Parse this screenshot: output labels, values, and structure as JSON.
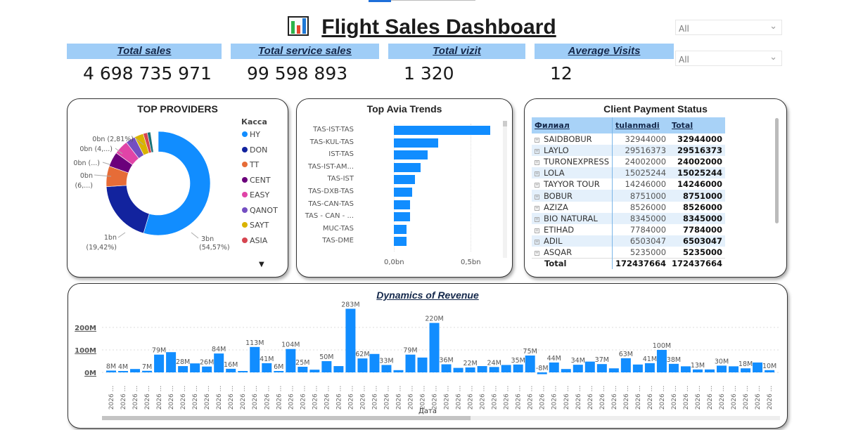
{
  "header": {
    "title": "Flight Sales Dashboard",
    "icon": "bar-chart-icon"
  },
  "kpis": [
    {
      "label": "Total sales",
      "value": "4 698 735 971"
    },
    {
      "label": "Total service sales",
      "value": "99 598 893"
    },
    {
      "label": "Total vizit",
      "value": "1 320"
    },
    {
      "label": "Average Visits",
      "value": "12"
    }
  ],
  "filters": [
    {
      "value": "All"
    },
    {
      "value": "All"
    }
  ],
  "colors": {
    "accent": "#118dff",
    "kpi_header": "#9fcdf7",
    "table_header": "#a8d2f7"
  },
  "chart_data": [
    {
      "type": "pie",
      "title": "TOP PROVIDERS",
      "legend_title": "Касса",
      "legend_position": "right",
      "donut": true,
      "slices": [
        {
          "name": "HY",
          "percent": 54.57,
          "label": "3bn",
          "pct_label": "(54,57%)",
          "color": "#118dff"
        },
        {
          "name": "DON",
          "percent": 19.42,
          "label": "1bn",
          "pct_label": "(19,42%)",
          "color": "#12239e"
        },
        {
          "name": "TT",
          "percent": 6.4,
          "label": "0bn",
          "pct_label": "(6,...)",
          "color": "#e66c37"
        },
        {
          "name": "CENT",
          "percent": 4.6,
          "label": "0bn (...)",
          "color": "#6b007b"
        },
        {
          "name": "EASY",
          "percent": 4.5,
          "label": "0bn (4,...)",
          "color": "#e044a7"
        },
        {
          "name": "QANOT",
          "percent": 3.0,
          "label": "",
          "color": "#744ec2"
        },
        {
          "name": "SAYT",
          "percent": 2.81,
          "label": "0bn (2,81%)",
          "color": "#d9b300"
        },
        {
          "name": "ASIA",
          "percent": 1.3,
          "label": "",
          "color": "#d64550"
        },
        {
          "percent": 1.0,
          "color": "#197278"
        }
      ]
    },
    {
      "type": "bar",
      "orientation": "horizontal",
      "title": "Top Avia Trends",
      "categories": [
        "TAS-IST-TAS",
        "TAS-KUL-TAS",
        "IST-TAS",
        "TAS-IST-AM...",
        "TAS-IST",
        "TAS-DXB-TAS",
        "TAS-CAN-TAS",
        "TAS - CAN - ...",
        "MUC-TAS",
        "TAS-DME"
      ],
      "values": [
        0.63,
        0.29,
        0.22,
        0.175,
        0.138,
        0.12,
        0.105,
        0.105,
        0.083,
        0.083
      ],
      "xticks": [
        "0,0bn",
        "0,5bn"
      ],
      "xlim": [
        0,
        0.65
      ],
      "unit": "bn"
    },
    {
      "type": "bar",
      "title": "Dynamics of Revenue",
      "xlabel": "Дата",
      "ylabel": "",
      "yticks": [
        "0M",
        "100M",
        "200M"
      ],
      "ylim": [
        -10,
        290
      ],
      "grid": true,
      "categories": [
        "2026 ...",
        "2026 ...",
        "2026 ...",
        "2026 ...",
        "2026 ...",
        "2026 ...",
        "2026 ...",
        "2026 ...",
        "2026 ...",
        "2026 ...",
        "2026 ...",
        "2026 ...",
        "2026 ...",
        "2026 ...",
        "2026 ...",
        "2026 ...",
        "2026 ...",
        "2026 ...",
        "2026 ...",
        "2026 ...",
        "2026 ...",
        "2026 ...",
        "2026 ...",
        "2026 ...",
        "2026 ...",
        "2026 ...",
        "2026 ...",
        "2026 ...",
        "2026 ...",
        "2026 ...",
        "2026 ...",
        "2026 ...",
        "2026 ...",
        "2026 ...",
        "2026 ...",
        "2026 ...",
        "2026 ...",
        "2026 ...",
        "2026 ...",
        "2026 ...",
        "2026 ...",
        "2026 ...",
        "2026 ...",
        "2026 ...",
        "2026 ...",
        "2026 ...",
        "2026 ...",
        "2026 ...",
        "2026 ...",
        "2026 ...",
        "2026 ...",
        "2026 ...",
        "2026 ...",
        "2026 ...",
        "2026 ...",
        "2026 ..."
      ],
      "values": [
        8,
        4,
        15,
        7,
        79,
        90,
        28,
        40,
        26,
        84,
        16,
        6,
        113,
        41,
        6,
        104,
        25,
        12,
        50,
        28,
        283,
        62,
        82,
        33,
        10,
        79,
        66,
        220,
        36,
        20,
        22,
        28,
        24,
        33,
        35,
        75,
        -8,
        44,
        15,
        34,
        48,
        37,
        18,
        63,
        35,
        41,
        100,
        38,
        27,
        13,
        13,
        30,
        27,
        18,
        44,
        10
      ],
      "data_labels": [
        "8M",
        "4M",
        null,
        "7M",
        "79M",
        null,
        "28M",
        null,
        "26M",
        "84M",
        "16M",
        null,
        "113M",
        "41M",
        "6M",
        "104M",
        "25M",
        null,
        "50M",
        null,
        "283M",
        "62M",
        null,
        "33M",
        null,
        "79M",
        null,
        "220M",
        "36M",
        null,
        "22M",
        null,
        "24M",
        null,
        "35M",
        "75M",
        "-8M",
        "44M",
        null,
        "34M",
        null,
        "37M",
        null,
        "63M",
        null,
        "41M",
        "100M",
        "38M",
        null,
        "13M",
        null,
        "30M",
        null,
        "18M",
        null,
        "10M"
      ]
    }
  ],
  "payment_table": {
    "title": "Client Payment Status",
    "columns": [
      "Филиал",
      "tulanmadi",
      "Total"
    ],
    "rows": [
      [
        "SAIDBOBUR",
        "32944000",
        "32944000"
      ],
      [
        "LAYLO",
        "29516373",
        "29516373"
      ],
      [
        "TURONEXPRESS",
        "24002000",
        "24002000"
      ],
      [
        "LOLA",
        "15025244",
        "15025244"
      ],
      [
        "TAYYOR TOUR",
        "14246000",
        "14246000"
      ],
      [
        "BOBUR",
        "8751000",
        "8751000"
      ],
      [
        "AZIZA",
        "8526000",
        "8526000"
      ],
      [
        "BIO NATURAL",
        "8345000",
        "8345000"
      ],
      [
        "ETIHAD",
        "7784000",
        "7784000"
      ],
      [
        "ADIL",
        "6503047",
        "6503047"
      ],
      [
        "ASQAR",
        "5235000",
        "5235000"
      ]
    ],
    "total": [
      "Total",
      "172437664",
      "172437664"
    ]
  }
}
